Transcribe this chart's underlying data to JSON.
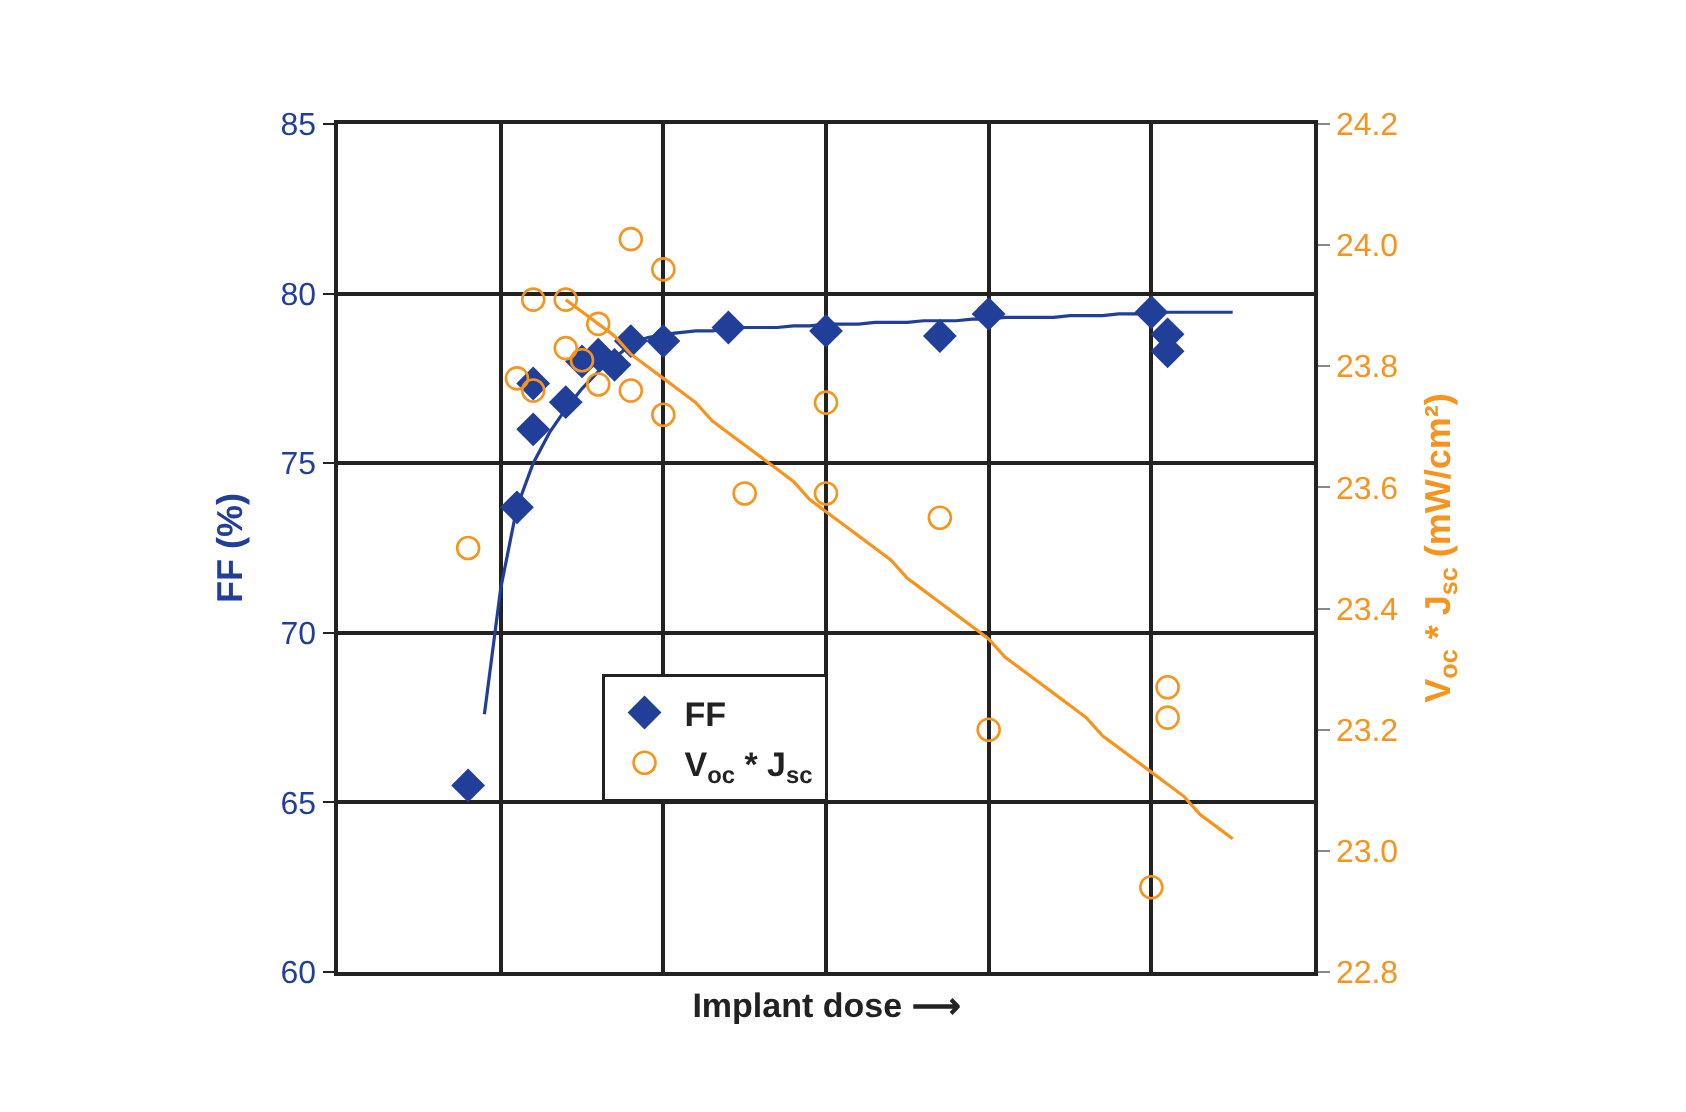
{
  "chart_data": {
    "type": "scatter",
    "xlabel": "Implant dose ⟶",
    "ylabel": "FF (%)",
    "y2label": "V$_{oc}$ * J$_{sc}$ (mW/cm²)",
    "categories": [
      null,
      null,
      null,
      null,
      null,
      null,
      null,
      null,
      null,
      null,
      null,
      null,
      null,
      null,
      null,
      null,
      null,
      null,
      null,
      null,
      null,
      null,
      null,
      null,
      null,
      null,
      null,
      null,
      null,
      null,
      null,
      null,
      null,
      null,
      null,
      null,
      null,
      null,
      null,
      null,
      null,
      null,
      null,
      null,
      null,
      null,
      null,
      null,
      null,
      null,
      null,
      null,
      null,
      null,
      null,
      null,
      null,
      null,
      null,
      null,
      null
    ],
    "ylim": [
      60,
      85
    ],
    "yticks": [
      60,
      65,
      70,
      75,
      80,
      85
    ],
    "y2lim": [
      22.8,
      24.2
    ],
    "y2ticks": [
      {
        "value": 22.8,
        "label": "22.8"
      },
      {
        "value": 23,
        "label": "23.0"
      },
      {
        "value": 23.2,
        "label": "23.2"
      },
      {
        "value": 23.4,
        "label": "23.4"
      },
      {
        "value": 23.6,
        "label": "23.6"
      },
      {
        "value": 23.8,
        "label": "23.8"
      },
      {
        "value": 24,
        "label": "24.0"
      },
      {
        "value": 24.2,
        "label": "24.2"
      }
    ],
    "tick_labels": "y",
    "grid": true,
    "legend": "bottom left",
    "series": [
      {
        "type": "line",
        "marker": "none",
        "color": "#213f99",
        "values": [
          null,
          null,
          null,
          null,
          null,
          null,
          null,
          null,
          null,
          67.6,
          71.3,
          73.7,
          75.0,
          75.9,
          76.6,
          77.2,
          77.7,
          78.1,
          78.5,
          78.7,
          78.8,
          78.85,
          78.9,
          78.9,
          78.95,
          79.0,
          79.0,
          79.0,
          79.05,
          79.05,
          79.1,
          79.1,
          79.1,
          79.15,
          79.15,
          79.15,
          79.2,
          79.2,
          79.2,
          79.25,
          79.25,
          79.3,
          79.3,
          79.3,
          79.3,
          79.35,
          79.35,
          79.35,
          79.4,
          79.4,
          79.4,
          79.45,
          79.45,
          79.45,
          79.45,
          79.45,
          null,
          null,
          null,
          null,
          null
        ]
      },
      {
        "type": "line",
        "marker": "none",
        "axis": "y2",
        "color": "#f7941d",
        "values": [
          null,
          null,
          null,
          null,
          null,
          null,
          null,
          null,
          null,
          null,
          null,
          null,
          null,
          null,
          23.91,
          23.89,
          23.87,
          23.85,
          23.82,
          23.8,
          23.78,
          23.76,
          23.74,
          23.71,
          23.69,
          23.67,
          23.65,
          23.63,
          23.61,
          23.58,
          23.56,
          23.54,
          23.52,
          23.5,
          23.48,
          23.45,
          23.43,
          23.41,
          23.39,
          23.37,
          23.35,
          23.32,
          23.3,
          23.28,
          23.26,
          23.24,
          23.22,
          23.19,
          23.17,
          23.15,
          23.13,
          23.11,
          23.09,
          23.06,
          23.04,
          23.02,
          null,
          null,
          null,
          null,
          null
        ]
      },
      {
        "name": "FF",
        "marker": "diamond",
        "color": "#213f99",
        "values": [
          null,
          null,
          null,
          null,
          null,
          null,
          null,
          null,
          65.5,
          null,
          null,
          73.7,
          76.0,
          null,
          76.8,
          78.0,
          78.2,
          77.9,
          78.6,
          null,
          78.6,
          null,
          null,
          null,
          79.0,
          null,
          null,
          null,
          null,
          null,
          78.9,
          null,
          null,
          null,
          null,
          null,
          null,
          78.75,
          null,
          null,
          79.4,
          null,
          null,
          null,
          null,
          null,
          null,
          null,
          null,
          null,
          79.45,
          78.8,
          null,
          null,
          null,
          null,
          null,
          null,
          null,
          null,
          null
        ]
      },
      {
        "marker": "diamond",
        "color": "#213f99",
        "values": [
          null,
          null,
          null,
          null,
          null,
          null,
          null,
          null,
          null,
          null,
          null,
          null,
          77.35,
          null,
          null,
          null,
          null,
          null,
          null,
          null,
          null,
          null,
          null,
          null,
          null,
          null,
          null,
          null,
          null,
          null,
          null,
          null,
          null,
          null,
          null,
          null,
          null,
          null,
          null,
          null,
          null,
          null,
          null,
          null,
          null,
          null,
          null,
          null,
          null,
          null,
          null,
          78.3,
          null,
          null,
          null,
          null,
          null,
          null,
          null,
          null,
          null
        ]
      },
      {
        "name": "V$_{oc}$ * J$_{sc}$",
        "marker": "circle",
        "axis": "y2",
        "color": "#f7941d",
        "values": [
          null,
          null,
          null,
          null,
          null,
          null,
          null,
          null,
          23.5,
          null,
          null,
          23.78,
          23.91,
          null,
          23.91,
          23.81,
          23.87,
          null,
          24.01,
          null,
          23.96,
          null,
          null,
          null,
          null,
          23.59,
          null,
          null,
          null,
          null,
          23.74,
          null,
          null,
          null,
          null,
          null,
          null,
          23.55,
          null,
          null,
          23.2,
          null,
          null,
          null,
          null,
          null,
          null,
          null,
          null,
          null,
          22.94,
          23.27,
          null,
          null,
          null,
          null,
          null,
          null,
          null,
          null,
          null
        ]
      },
      {
        "marker": "circle",
        "axis": "y2",
        "color": "#f7941d",
        "values": [
          null,
          null,
          null,
          null,
          null,
          null,
          null,
          null,
          null,
          null,
          null,
          null,
          23.76,
          null,
          23.83,
          null,
          23.77,
          null,
          23.76,
          null,
          23.72,
          null,
          null,
          null,
          null,
          null,
          null,
          null,
          null,
          null,
          23.59,
          null,
          null,
          null,
          null,
          null,
          null,
          null,
          null,
          null,
          null,
          null,
          null,
          null,
          null,
          null,
          null,
          null,
          null,
          null,
          null,
          23.22,
          null,
          null,
          null,
          null,
          null,
          null,
          null,
          null,
          null
        ]
      }
    ]
  }
}
